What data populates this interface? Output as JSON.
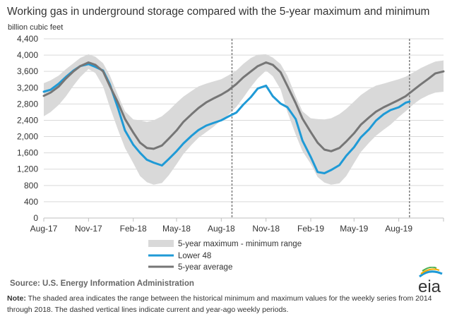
{
  "chart_data": {
    "type": "line",
    "title": "Working gas in underground  storage compared with the 5-year maximum and minimum",
    "ylabel": "billion cubic feet",
    "ylim": [
      0,
      4400
    ],
    "yticks": [
      0,
      400,
      800,
      1200,
      1600,
      2000,
      2400,
      2800,
      3200,
      3600,
      4000,
      4400
    ],
    "ytick_labels": [
      "0",
      "400",
      "800",
      "1,200",
      "1,600",
      "2,000",
      "2,400",
      "2,800",
      "3,200",
      "3,600",
      "4,000",
      "4,400"
    ],
    "x_tick_labels": [
      "Aug-17",
      "Nov-17",
      "Feb-18",
      "May-18",
      "Aug-18",
      "Nov-18",
      "Feb-19",
      "May-19",
      "Aug-19"
    ],
    "x_tick_dates": [
      "2017-08-01",
      "2017-11-01",
      "2018-02-01",
      "2018-05-01",
      "2018-08-01",
      "2018-11-01",
      "2019-02-01",
      "2019-05-01",
      "2019-08-01"
    ],
    "x_range": [
      "2017-08-01",
      "2019-11-01"
    ],
    "grid": "horizontal",
    "dashed_vertical_lines": [
      "2018-08-23",
      "2019-08-23"
    ],
    "series": [
      {
        "name": "5-year maximum - minimum range",
        "kind": "band",
        "color": "#d9d9d9",
        "x": [
          "2017-08-01",
          "2017-08-15",
          "2017-09-01",
          "2017-09-15",
          "2017-10-01",
          "2017-10-15",
          "2017-11-01",
          "2017-11-15",
          "2017-12-01",
          "2017-12-15",
          "2018-01-01",
          "2018-01-15",
          "2018-02-01",
          "2018-02-15",
          "2018-03-01",
          "2018-03-15",
          "2018-04-01",
          "2018-04-15",
          "2018-05-01",
          "2018-05-15",
          "2018-06-01",
          "2018-06-15",
          "2018-07-01",
          "2018-07-15",
          "2018-08-01",
          "2018-08-15",
          "2018-09-01",
          "2018-09-15",
          "2018-10-01",
          "2018-10-15",
          "2018-11-01",
          "2018-11-15",
          "2018-12-01",
          "2018-12-15",
          "2019-01-01",
          "2019-01-15",
          "2019-02-01",
          "2019-02-15",
          "2019-03-01",
          "2019-03-15",
          "2019-04-01",
          "2019-04-15",
          "2019-05-01",
          "2019-05-15",
          "2019-06-01",
          "2019-06-15",
          "2019-07-01",
          "2019-07-15",
          "2019-08-01",
          "2019-08-15",
          "2019-09-01",
          "2019-09-15",
          "2019-10-01",
          "2019-10-15",
          "2019-11-01"
        ],
        "upper": [
          3310,
          3380,
          3500,
          3650,
          3800,
          3930,
          4020,
          3960,
          3800,
          3500,
          3000,
          2620,
          2420,
          2400,
          2360,
          2400,
          2500,
          2640,
          2830,
          2980,
          3120,
          3230,
          3300,
          3350,
          3410,
          3500,
          3620,
          3780,
          3930,
          4010,
          4020,
          3940,
          3780,
          3490,
          2990,
          2620,
          2450,
          2430,
          2420,
          2450,
          2550,
          2680,
          2860,
          3020,
          3160,
          3250,
          3300,
          3350,
          3410,
          3470,
          3580,
          3680,
          3770,
          3840,
          3870
        ],
        "lower": [
          2500,
          2600,
          2780,
          2980,
          3250,
          3460,
          3660,
          3560,
          3230,
          2720,
          2150,
          1720,
          1350,
          1030,
          880,
          820,
          860,
          1050,
          1320,
          1570,
          1800,
          1970,
          2110,
          2230,
          2400,
          2530,
          2730,
          2950,
          3220,
          3430,
          3620,
          3480,
          3160,
          2600,
          2050,
          1640,
          1330,
          1010,
          870,
          820,
          850,
          1030,
          1350,
          1620,
          1850,
          2020,
          2170,
          2290,
          2480,
          2620,
          2800,
          2920,
          3020,
          3080,
          3100
        ]
      },
      {
        "name": "Lower 48",
        "color": "#1f9ad6",
        "x": [
          "2017-08-01",
          "2017-08-15",
          "2017-09-01",
          "2017-09-15",
          "2017-10-01",
          "2017-10-15",
          "2017-11-01",
          "2017-11-15",
          "2017-12-01",
          "2017-12-15",
          "2018-01-01",
          "2018-01-15",
          "2018-02-01",
          "2018-02-15",
          "2018-03-01",
          "2018-03-15",
          "2018-04-01",
          "2018-04-15",
          "2018-05-01",
          "2018-05-15",
          "2018-06-01",
          "2018-06-15",
          "2018-07-01",
          "2018-07-15",
          "2018-08-01",
          "2018-08-15",
          "2018-09-01",
          "2018-09-15",
          "2018-10-01",
          "2018-10-15",
          "2018-11-01",
          "2018-11-15",
          "2018-12-01",
          "2018-12-15",
          "2019-01-01",
          "2019-01-15",
          "2019-02-01",
          "2019-02-15",
          "2019-03-01",
          "2019-03-15",
          "2019-04-01",
          "2019-04-15",
          "2019-05-01",
          "2019-05-15",
          "2019-06-01",
          "2019-06-15",
          "2019-07-01",
          "2019-07-15",
          "2019-08-01",
          "2019-08-15",
          "2019-08-23"
        ],
        "y": [
          3100,
          3150,
          3300,
          3460,
          3620,
          3730,
          3780,
          3710,
          3620,
          3280,
          2680,
          2150,
          1800,
          1600,
          1430,
          1360,
          1290,
          1450,
          1640,
          1830,
          2020,
          2160,
          2270,
          2330,
          2400,
          2490,
          2590,
          2780,
          2970,
          3180,
          3250,
          2990,
          2810,
          2720,
          2430,
          1900,
          1500,
          1130,
          1100,
          1180,
          1300,
          1530,
          1740,
          1980,
          2180,
          2390,
          2550,
          2650,
          2720,
          2830,
          2860
        ]
      },
      {
        "name": "5-year average",
        "color": "#767676",
        "x": [
          "2017-08-01",
          "2017-08-15",
          "2017-09-01",
          "2017-09-15",
          "2017-10-01",
          "2017-10-15",
          "2017-11-01",
          "2017-11-15",
          "2017-12-01",
          "2017-12-15",
          "2018-01-01",
          "2018-01-15",
          "2018-02-01",
          "2018-02-15",
          "2018-03-01",
          "2018-03-15",
          "2018-04-01",
          "2018-04-15",
          "2018-05-01",
          "2018-05-15",
          "2018-06-01",
          "2018-06-15",
          "2018-07-01",
          "2018-07-15",
          "2018-08-01",
          "2018-08-15",
          "2018-09-01",
          "2018-09-15",
          "2018-10-01",
          "2018-10-15",
          "2018-11-01",
          "2018-11-15",
          "2018-12-01",
          "2018-12-15",
          "2019-01-01",
          "2019-01-15",
          "2019-02-01",
          "2019-02-15",
          "2019-03-01",
          "2019-03-15",
          "2019-04-01",
          "2019-04-15",
          "2019-05-01",
          "2019-05-15",
          "2019-06-01",
          "2019-06-15",
          "2019-07-01",
          "2019-07-15",
          "2019-08-01",
          "2019-08-15",
          "2019-09-01",
          "2019-09-15",
          "2019-10-01",
          "2019-10-15",
          "2019-11-01"
        ],
        "y": [
          3000,
          3080,
          3230,
          3420,
          3600,
          3730,
          3820,
          3760,
          3600,
          3240,
          2820,
          2430,
          2100,
          1850,
          1720,
          1700,
          1780,
          1950,
          2150,
          2360,
          2550,
          2700,
          2840,
          2930,
          3030,
          3130,
          3290,
          3450,
          3600,
          3730,
          3820,
          3760,
          3580,
          3240,
          2820,
          2440,
          2110,
          1850,
          1680,
          1640,
          1720,
          1880,
          2080,
          2290,
          2470,
          2610,
          2720,
          2800,
          2900,
          2990,
          3150,
          3280,
          3420,
          3550,
          3600
        ]
      }
    ],
    "legend": [
      "5-year maximum - minimum range",
      "Lower 48",
      "5-year average"
    ],
    "legend_position": "bottom-left"
  },
  "source": "Source:  U.S. Energy Information Administration",
  "note_label": "Note:",
  "note": " The shaded area indicates the range between the historical minimum and maximum values for the weekly series from 2014 through 2018. The dashed vertical lines indicate current and year-ago weekly periods.",
  "logo_text": "eia",
  "colors": {
    "logo_swoosh": "#1f9ad6",
    "logo_swoosh_2": "#f2a900",
    "logo_swoosh_3": "#4caf50"
  }
}
